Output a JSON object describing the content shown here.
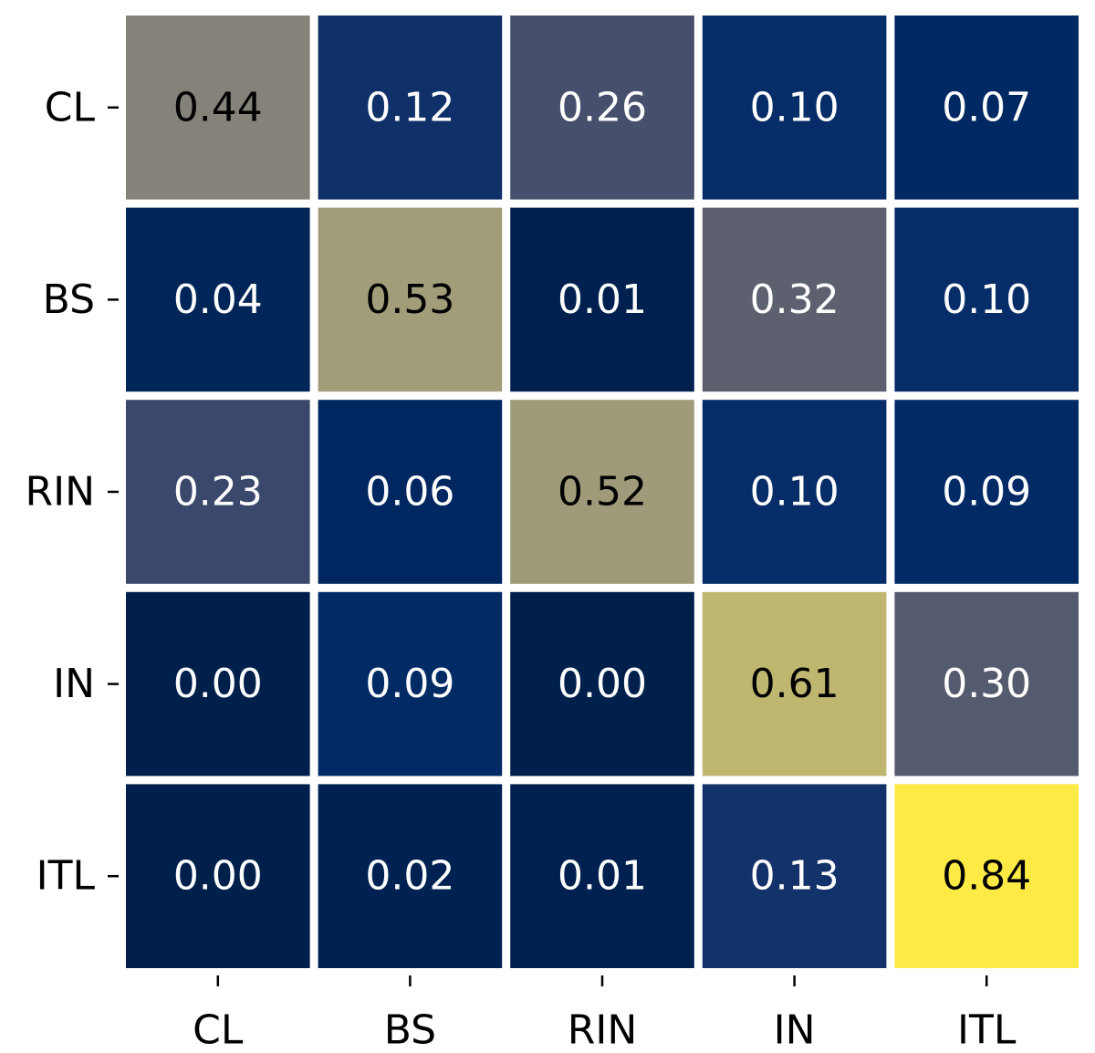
{
  "chart_data": {
    "type": "heatmap",
    "title": "",
    "xlabel": "",
    "ylabel": "",
    "x_categories": [
      "CL",
      "BS",
      "RIN",
      "IN",
      "ITL"
    ],
    "y_categories": [
      "CL",
      "BS",
      "RIN",
      "IN",
      "ITL"
    ],
    "values": [
      [
        0.44,
        0.12,
        0.26,
        0.1,
        0.07
      ],
      [
        0.04,
        0.53,
        0.01,
        0.32,
        0.1
      ],
      [
        0.23,
        0.06,
        0.52,
        0.1,
        0.09
      ],
      [
        0.0,
        0.09,
        0.0,
        0.61,
        0.3
      ],
      [
        0.0,
        0.02,
        0.01,
        0.13,
        0.84
      ]
    ],
    "value_format": "0.00",
    "colormap": "cividis",
    "grid": false,
    "legend": "none"
  }
}
